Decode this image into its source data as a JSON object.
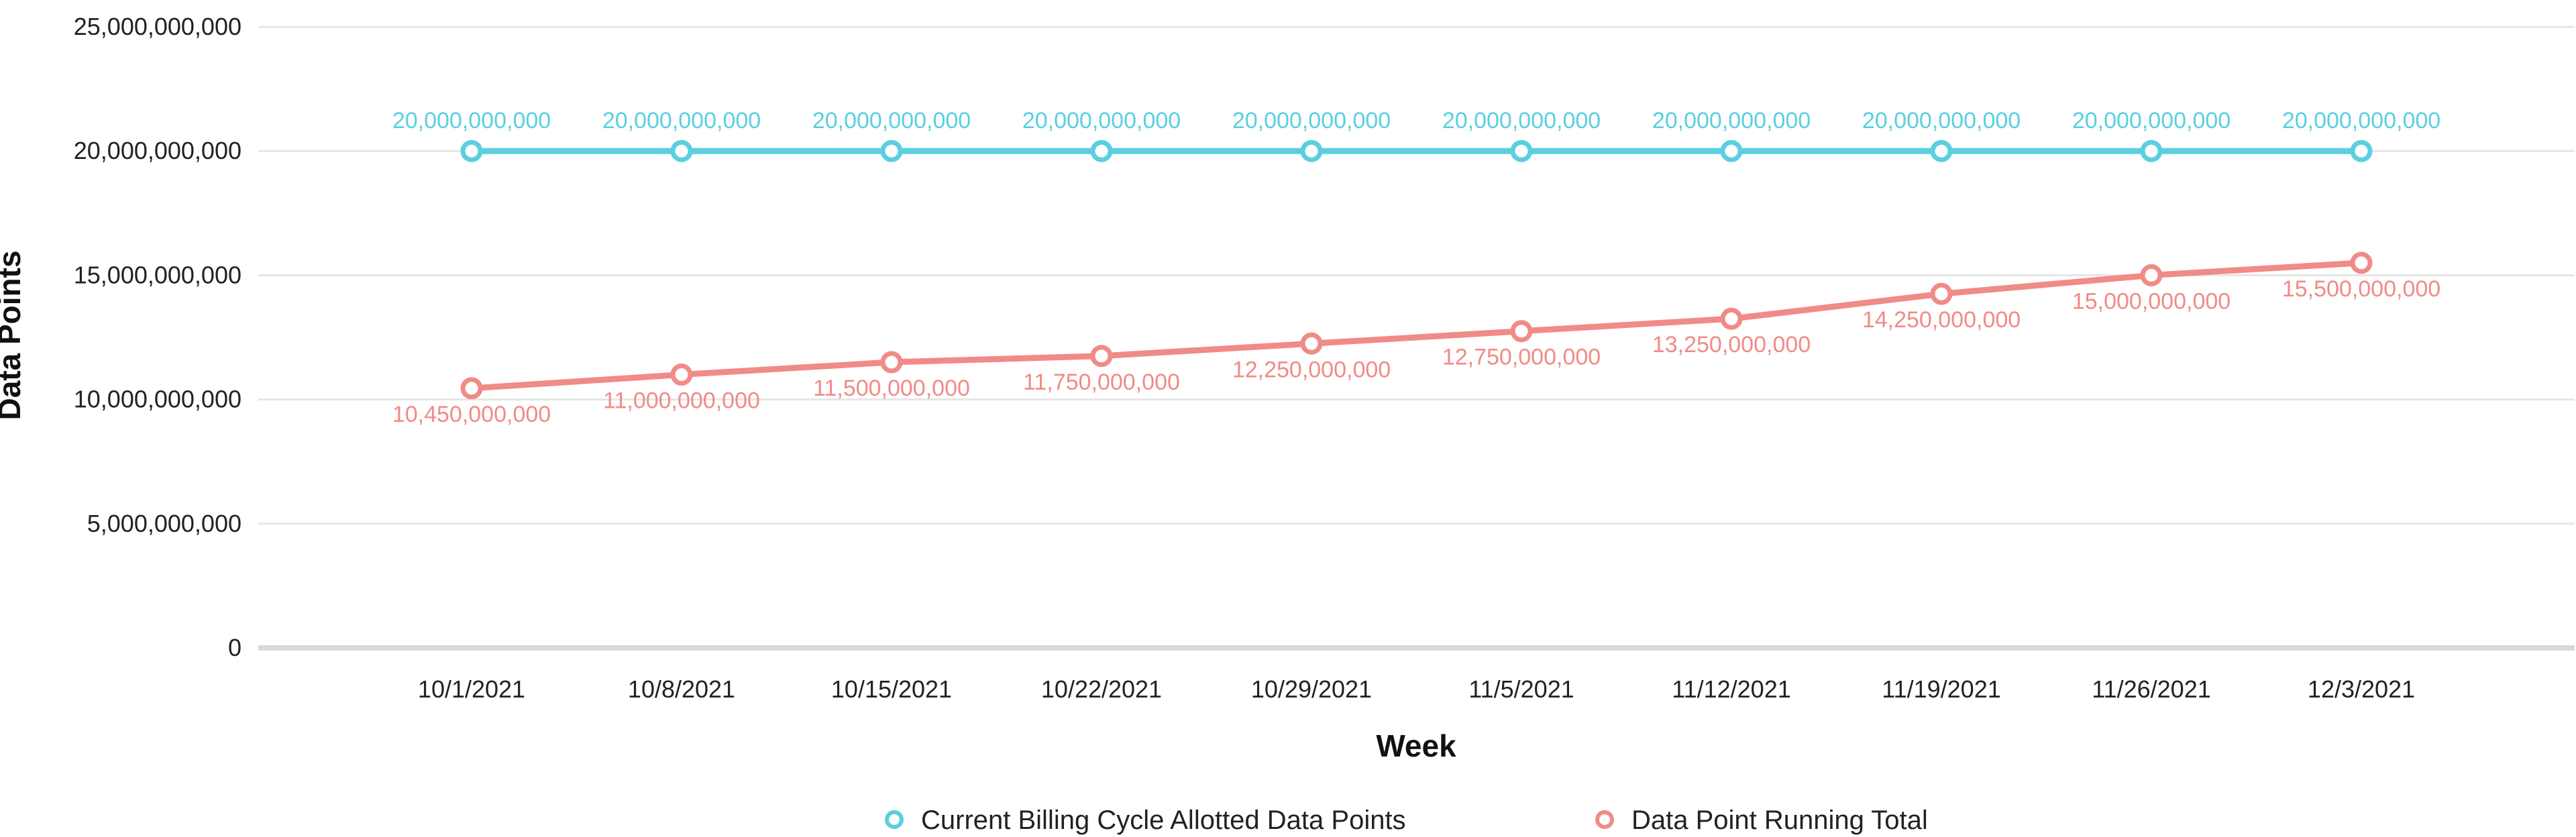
{
  "chart_data": {
    "type": "line",
    "xlabel": "Week",
    "ylabel": "Data Points",
    "ylim": [
      0,
      25000000000
    ],
    "y_ticks": [
      0,
      5000000000,
      10000000000,
      15000000000,
      20000000000,
      25000000000
    ],
    "y_tick_labels": [
      "0",
      "5,000,000,000",
      "10,000,000,000",
      "15,000,000,000",
      "20,000,000,000",
      "25,000,000,000"
    ],
    "categories": [
      "10/1/2021",
      "10/8/2021",
      "10/15/2021",
      "10/22/2021",
      "10/29/2021",
      "11/5/2021",
      "11/12/2021",
      "11/19/2021",
      "11/26/2021",
      "12/3/2021"
    ],
    "grid": true,
    "legend_position": "bottom",
    "series": [
      {
        "name": "Current Billing Cycle Allotted Data Points",
        "color": "#5BCFE0",
        "label_position": "above",
        "values": [
          20000000000,
          20000000000,
          20000000000,
          20000000000,
          20000000000,
          20000000000,
          20000000000,
          20000000000,
          20000000000,
          20000000000
        ],
        "labels": [
          "20,000,000,000",
          "20,000,000,000",
          "20,000,000,000",
          "20,000,000,000",
          "20,000,000,000",
          "20,000,000,000",
          "20,000,000,000",
          "20,000,000,000",
          "20,000,000,000",
          "20,000,000,000"
        ]
      },
      {
        "name": "Data Point Running Total",
        "color": "#F08B86",
        "label_position": "below",
        "values": [
          10450000000,
          11000000000,
          11500000000,
          11750000000,
          12250000000,
          12750000000,
          13250000000,
          14250000000,
          15000000000,
          15500000000
        ],
        "labels": [
          "10,450,000,000",
          "11,000,000,000",
          "11,500,000,000",
          "11,750,000,000",
          "12,250,000,000",
          "12,750,000,000",
          "13,250,000,000",
          "14,250,000,000",
          "15,000,000,000",
          "15,500,000,000"
        ]
      }
    ]
  }
}
